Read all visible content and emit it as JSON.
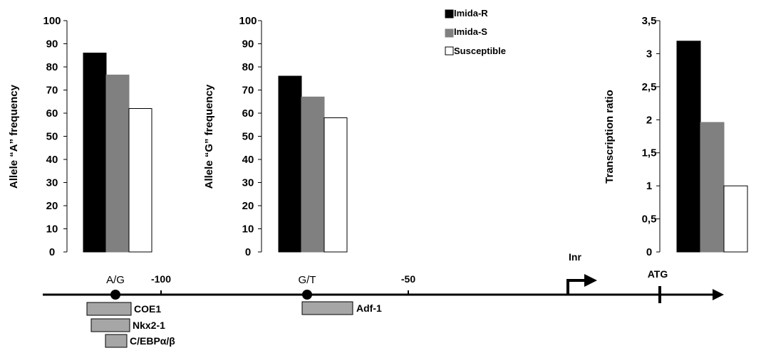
{
  "legend": {
    "items": [
      {
        "label": "Imida-R",
        "color": "#000000"
      },
      {
        "label": "Imida-S",
        "color": "#808080"
      },
      {
        "label": "Susceptible",
        "color": "#ffffff"
      }
    ]
  },
  "chart_data": [
    {
      "type": "bar",
      "ylabel": "Allele “A” frequency",
      "ylim": [
        0,
        100
      ],
      "yticks": [
        "0",
        "10",
        "20",
        "30",
        "40",
        "50",
        "60",
        "70",
        "80",
        "90",
        "100"
      ],
      "series": [
        {
          "name": "Imida-R",
          "values": [
            86
          ]
        },
        {
          "name": "Imida-S",
          "values": [
            76.5
          ]
        },
        {
          "name": "Susceptible",
          "values": [
            62
          ]
        }
      ]
    },
    {
      "type": "bar",
      "ylabel": "Allele “G” frequency",
      "ylim": [
        0,
        100
      ],
      "yticks": [
        "0",
        "10",
        "20",
        "30",
        "40",
        "50",
        "60",
        "70",
        "80",
        "90",
        "100"
      ],
      "series": [
        {
          "name": "Imida-R",
          "values": [
            76
          ]
        },
        {
          "name": "Imida-S",
          "values": [
            67
          ]
        },
        {
          "name": "Susceptible",
          "values": [
            58
          ]
        }
      ]
    },
    {
      "type": "bar",
      "ylabel": "Transcription ratio",
      "ylim": [
        0,
        3.5
      ],
      "yticks": [
        "0",
        "0,5",
        "1",
        "1,5",
        "2",
        "2,5",
        "3",
        "3,5"
      ],
      "series": [
        {
          "name": "Imida-R",
          "values": [
            3.19
          ]
        },
        {
          "name": "Imida-S",
          "values": [
            1.96
          ]
        },
        {
          "name": "Susceptible",
          "values": [
            1.0
          ]
        }
      ]
    }
  ],
  "promoter": {
    "position_labels": [
      "-100",
      "-50"
    ],
    "snp_sites": [
      "A/G",
      "G/T"
    ],
    "inr_label": "Inr",
    "atg_label": "ATG",
    "binding_sites": [
      "COE1",
      "Nkx2-1",
      "C/EBPα/β",
      "Adf-1"
    ]
  }
}
